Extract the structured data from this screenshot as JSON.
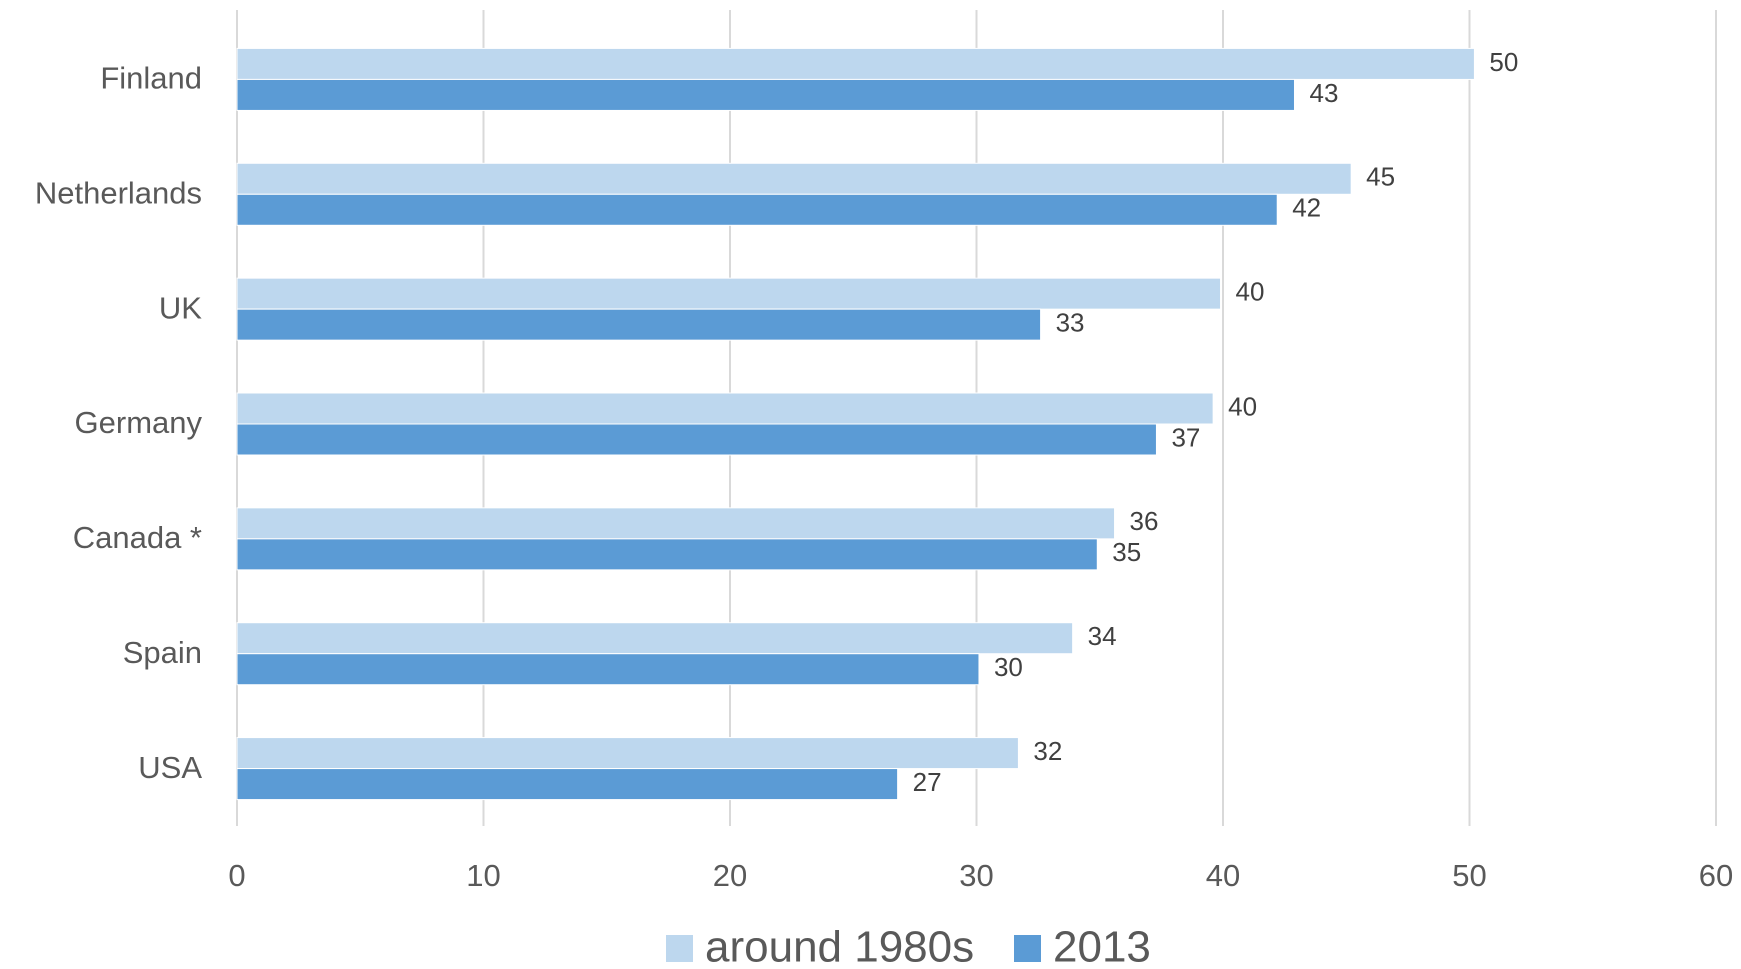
{
  "chart_data": {
    "type": "bar",
    "orientation": "horizontal",
    "categories": [
      "Finland",
      "Netherlands",
      "UK",
      "Germany",
      "Canada *",
      "Spain",
      "USA"
    ],
    "series": [
      {
        "name": "around 1980s",
        "values": [
          50.2,
          45.2,
          39.9,
          39.6,
          35.6,
          33.9,
          31.7
        ],
        "labels": [
          "50",
          "45",
          "40",
          "40",
          "36",
          "34",
          "32"
        ],
        "color": "#bdd7ee"
      },
      {
        "name": "2013",
        "values": [
          42.9,
          42.2,
          32.6,
          37.3,
          34.9,
          30.1,
          26.8
        ],
        "labels": [
          "43",
          "42",
          "33",
          "37",
          "35",
          "30",
          "27"
        ],
        "color": "#5b9bd5"
      }
    ],
    "xlim": [
      0,
      60
    ],
    "xticks": [
      "0",
      "10",
      "20",
      "30",
      "40",
      "50",
      "60"
    ],
    "grid": "vertical",
    "legend": "bottom-center"
  }
}
